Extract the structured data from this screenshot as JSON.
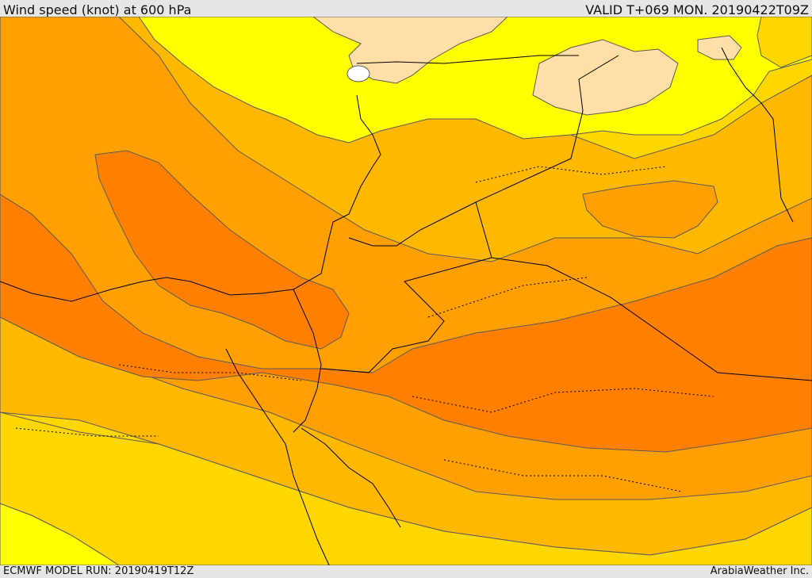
{
  "header": {
    "title": "Wind speed (knot) at 600 hPa",
    "valid": "VALID T+069 MON. 20190422T09Z"
  },
  "footer": {
    "model_run": "ECMWF MODEL RUN: 20190419T12Z",
    "credit": "ArabiaWeather Inc."
  },
  "colors": {
    "band_lightest": "#ffdfa6",
    "band_yellow": "#ffff00",
    "band_gold": "#ffd700",
    "band_amber": "#ffb800",
    "band_orange": "#ffa000",
    "band_dark_orange": "#ff8000",
    "white_patch": "#ffffff",
    "contour_line": "#5a5a5a",
    "border_line": "#000000"
  }
}
